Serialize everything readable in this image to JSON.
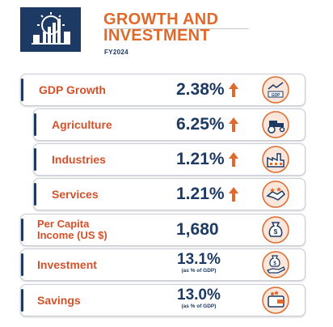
{
  "header": {
    "title_line1": "GROWTH AND",
    "title_line2": "INVESTMENT",
    "year": "FY2024",
    "logo_icon": "factory-growth-icon"
  },
  "colors": {
    "navy": "#1c3a63",
    "orange": "#e06a2c",
    "label_red": "#d4512a"
  },
  "items": [
    {
      "label": "GDP Growth",
      "value": "2.38%",
      "trend": "up",
      "icon": "gdp-chart-icon"
    },
    {
      "label": "Agriculture",
      "value": "6.25%",
      "trend": "up",
      "icon": "tractor-icon"
    },
    {
      "label": "Industries",
      "value": "1.21%",
      "trend": "up",
      "icon": "factory-icon"
    },
    {
      "label": "Services",
      "value": "1.21%",
      "trend": "up",
      "icon": "handshake-icon"
    },
    {
      "label_line1": "Per Capita",
      "label_line2": "Income (US $)",
      "value": "1,680",
      "icon": "money-bag-icon"
    },
    {
      "label": "Investment",
      "value": "13.1%",
      "note": "(as % of GDP)",
      "icon": "money-hand-icon"
    },
    {
      "label": "Savings",
      "value": "13.0%",
      "note": "(as % of GDP)",
      "icon": "wallet-icon"
    }
  ]
}
